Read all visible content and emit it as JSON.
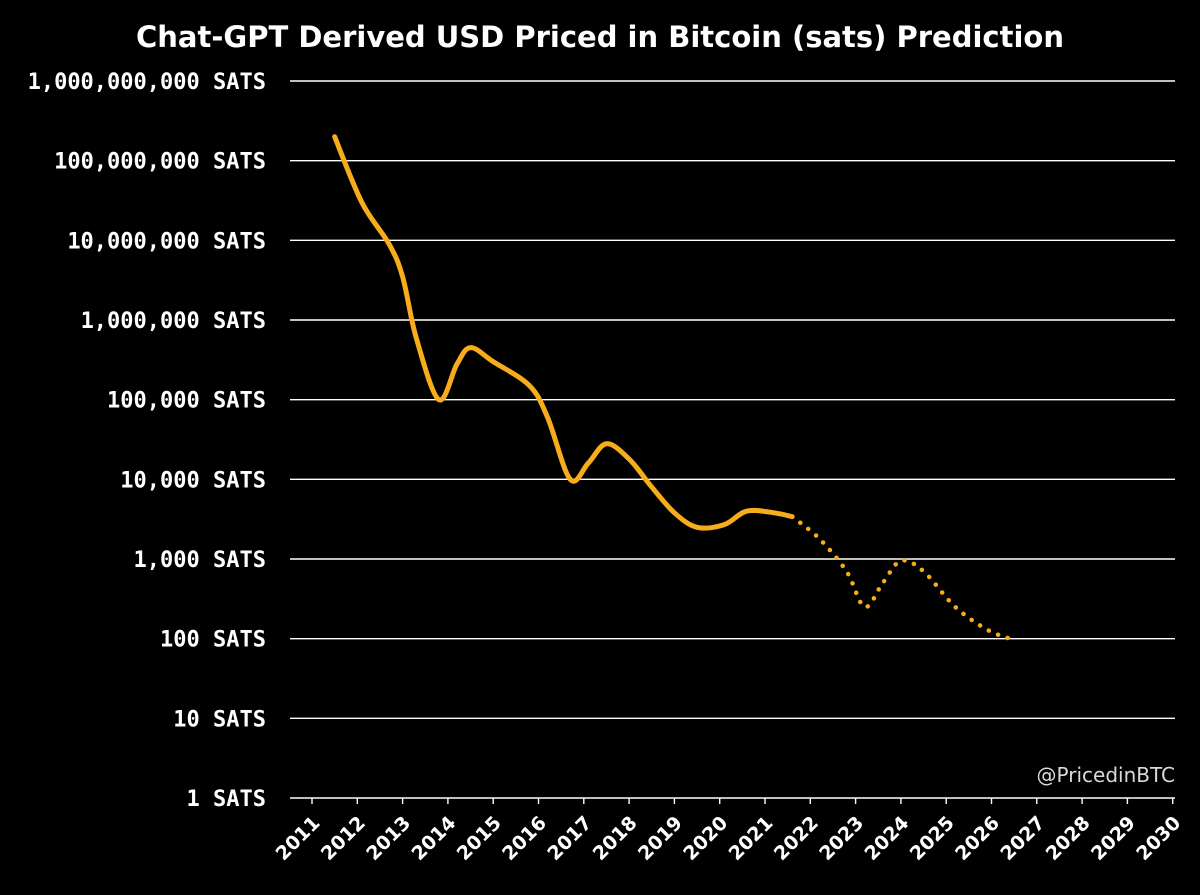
{
  "colors": {
    "background": "#000000",
    "grid": "#ffffff",
    "line": "#f7ac1b",
    "text": "#ffffff"
  },
  "watermark": "@PricedinBTC",
  "chart_data": {
    "type": "line",
    "title": "Chat-GPT Derived USD Priced in Bitcoin (sats) Prediction",
    "xlabel": "",
    "ylabel": "",
    "yscale": "log",
    "ylim": [
      1,
      1000000000
    ],
    "grid": true,
    "categories": [
      "2011",
      "2012",
      "2013",
      "2014",
      "2015",
      "2016",
      "2017",
      "2018",
      "2019",
      "2020",
      "2021",
      "2022",
      "2023",
      "2024",
      "2025",
      "2026",
      "2027",
      "2028",
      "2029",
      "2030"
    ],
    "ytick_values": [
      1,
      10,
      100,
      1000,
      10000,
      100000,
      1000000,
      10000000,
      100000000,
      1000000000
    ],
    "ytick_labels": [
      "1 SATS",
      "10 SATS",
      "100 SATS",
      "1,000 SATS",
      "10,000 SATS",
      "100,000 SATS",
      "1,000,000 SATS",
      "10,000,000 SATS",
      "100,000,000 SATS",
      "1,000,000,000 SATS"
    ],
    "series": [
      {
        "style": "solid",
        "points": [
          {
            "x": 2011.5,
            "y": 200000000
          },
          {
            "x": 2012.1,
            "y": 30000000
          },
          {
            "x": 2012.7,
            "y": 9000000
          },
          {
            "x": 2013.0,
            "y": 3500000
          },
          {
            "x": 2013.3,
            "y": 600000
          },
          {
            "x": 2013.8,
            "y": 100000
          },
          {
            "x": 2014.2,
            "y": 280000
          },
          {
            "x": 2014.5,
            "y": 450000
          },
          {
            "x": 2015.0,
            "y": 300000
          },
          {
            "x": 2015.8,
            "y": 150000
          },
          {
            "x": 2016.2,
            "y": 60000
          },
          {
            "x": 2016.7,
            "y": 10000
          },
          {
            "x": 2017.1,
            "y": 16000
          },
          {
            "x": 2017.5,
            "y": 28000
          },
          {
            "x": 2018.0,
            "y": 18000
          },
          {
            "x": 2018.5,
            "y": 8000
          },
          {
            "x": 2019.0,
            "y": 3800
          },
          {
            "x": 2019.5,
            "y": 2500
          },
          {
            "x": 2020.1,
            "y": 2700
          },
          {
            "x": 2020.6,
            "y": 4000
          },
          {
            "x": 2021.2,
            "y": 3800
          },
          {
            "x": 2021.6,
            "y": 3400
          }
        ]
      },
      {
        "style": "dotted",
        "points": [
          {
            "x": 2021.6,
            "y": 3400
          },
          {
            "x": 2022.2,
            "y": 1800
          },
          {
            "x": 2022.8,
            "y": 700
          },
          {
            "x": 2023.2,
            "y": 250
          },
          {
            "x": 2023.6,
            "y": 500
          },
          {
            "x": 2024.0,
            "y": 950
          },
          {
            "x": 2024.5,
            "y": 700
          },
          {
            "x": 2025.2,
            "y": 250
          },
          {
            "x": 2025.9,
            "y": 130
          },
          {
            "x": 2026.4,
            "y": 100
          }
        ]
      }
    ]
  }
}
